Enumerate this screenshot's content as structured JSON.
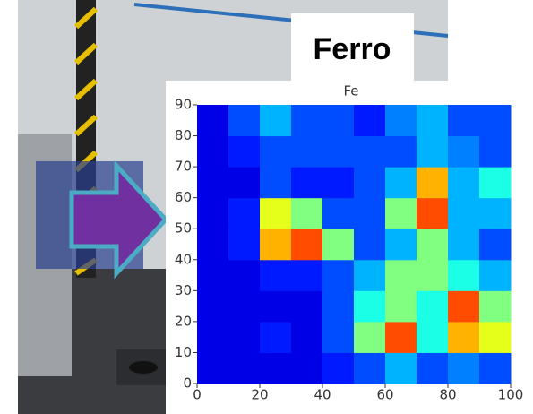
{
  "label": "Ferro",
  "chart_data": {
    "type": "heatmap",
    "title": "Fe",
    "xlim": [
      0,
      100
    ],
    "ylim": [
      0,
      90
    ],
    "xticks": [
      0,
      20,
      40,
      60,
      80,
      100
    ],
    "yticks": [
      0,
      10,
      20,
      30,
      40,
      50,
      60,
      70,
      80,
      90
    ],
    "colormap": "jet",
    "values": [
      [
        0.1,
        0.1,
        0.1,
        0.1,
        0.15,
        0.2,
        0.3,
        0.2,
        0.25,
        0.2
      ],
      [
        0.1,
        0.1,
        0.15,
        0.1,
        0.2,
        0.5,
        0.8,
        0.4,
        0.7,
        0.6
      ],
      [
        0.1,
        0.1,
        0.1,
        0.1,
        0.2,
        0.4,
        0.5,
        0.4,
        0.8,
        0.5
      ],
      [
        0.1,
        0.1,
        0.15,
        0.15,
        0.2,
        0.3,
        0.5,
        0.5,
        0.4,
        0.3
      ],
      [
        0.1,
        0.15,
        0.7,
        0.8,
        0.5,
        0.2,
        0.3,
        0.5,
        0.3,
        0.2
      ],
      [
        0.1,
        0.15,
        0.6,
        0.5,
        0.2,
        0.2,
        0.5,
        0.8,
        0.3,
        0.3
      ],
      [
        0.1,
        0.1,
        0.2,
        0.15,
        0.15,
        0.2,
        0.3,
        0.7,
        0.3,
        0.4
      ],
      [
        0.1,
        0.15,
        0.2,
        0.2,
        0.2,
        0.2,
        0.2,
        0.3,
        0.25,
        0.2
      ],
      [
        0.1,
        0.2,
        0.3,
        0.2,
        0.2,
        0.15,
        0.25,
        0.3,
        0.2,
        0.2
      ]
    ]
  }
}
